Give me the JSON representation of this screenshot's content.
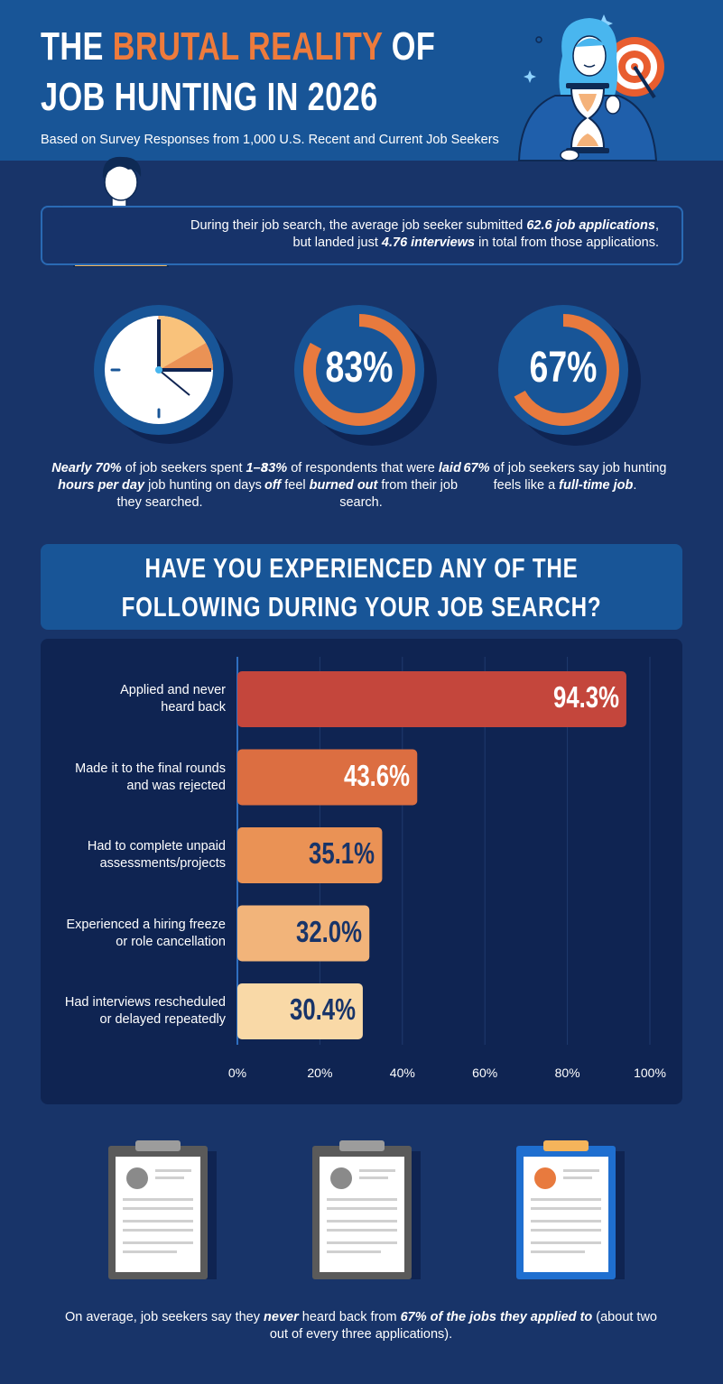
{
  "header": {
    "title_word1": "THE",
    "title_accent": "BRUTAL REALITY",
    "title_word2": "OF",
    "title_line2": "JOB HUNTING IN 2026",
    "subtitle": "Based on Survey Responses from 1,000 U.S. Recent and Current Job Seekers"
  },
  "summary": {
    "part1": "During their job search, the average job seeker submitted ",
    "applications": "62.6 job applications",
    "part2": ", but landed just ",
    "interviews": "4.76 interviews",
    "part3": " in total from those applications."
  },
  "stats": [
    {
      "ring_label": "",
      "bold1": "Nearly 70%",
      "text1": " of job seekers spent ",
      "bold2": "1–3 hours per day",
      "text2": " job hunting on days they searched.",
      "text3": ""
    },
    {
      "ring_label": "83%",
      "percent": 83,
      "bold1": "83%",
      "text1": " of respondents that were ",
      "bold2": "laid off",
      "text2": " feel ",
      "bold3": "burned out",
      "text3": " from their job search."
    },
    {
      "ring_label": "67%",
      "percent": 67,
      "bold1": "67%",
      "text1": " of job seekers say job hunting feels like a ",
      "bold2": "full-time job",
      "text2": "."
    }
  ],
  "question": {
    "line1": "HAVE YOU EXPERIENCED ANY OF THE",
    "line2": "FOLLOWING DURING YOUR JOB SEARCH?"
  },
  "chart_data": {
    "type": "bar",
    "orientation": "horizontal",
    "categories": [
      [
        "Applied and never",
        "heard back"
      ],
      [
        "Made it to the final rounds",
        "and was rejected"
      ],
      [
        "Had to complete unpaid",
        "assessments/projects"
      ],
      [
        "Experienced a hiring freeze",
        "or role cancellation"
      ],
      [
        "Had interviews rescheduled",
        "or delayed repeatedly"
      ]
    ],
    "values": [
      94.3,
      43.6,
      35.1,
      32.0,
      30.4
    ],
    "value_labels": [
      "94.3%",
      "43.6%",
      "35.1%",
      "32.0%",
      "30.4%"
    ],
    "xlim": [
      0,
      100
    ],
    "xticks": [
      "0%",
      "20%",
      "40%",
      "60%",
      "80%",
      "100%"
    ],
    "grid": true,
    "bar_colors": [
      "#c4463c",
      "#dc6e41",
      "#ea9255",
      "#f2b47a",
      "#f9d9a7"
    ],
    "label_colors": [
      "#ffffff",
      "#ffffff",
      "#183469",
      "#183469",
      "#183469"
    ]
  },
  "footer": {
    "part1": "On average, job seekers say they ",
    "bold1": "never",
    "part2": " heard back from ",
    "bold2": "67% of the jobs they applied to",
    "part3": " (about two out of every three applications)."
  },
  "colors": {
    "background": "#183469",
    "header": "#185597",
    "accent": "#ee7b3c",
    "panel": "#0f2452"
  }
}
